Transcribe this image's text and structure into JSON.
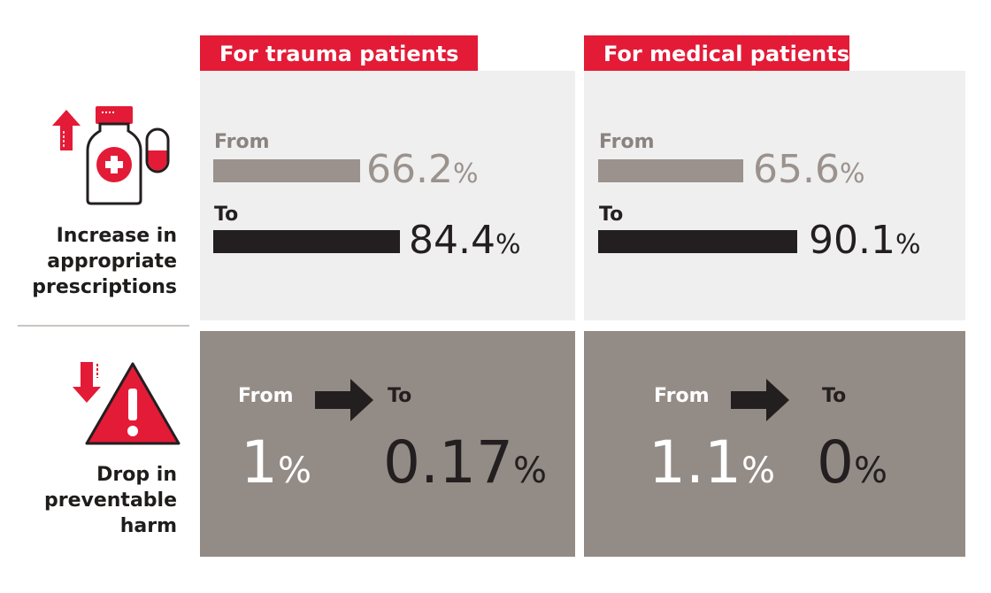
{
  "chart_data": [
    {
      "type": "bar",
      "title": "Increase in appropriate prescriptions — For trauma patients",
      "categories": [
        "From",
        "To"
      ],
      "values": [
        66.2,
        84.4
      ],
      "unit": "%"
    },
    {
      "type": "bar",
      "title": "Increase in appropriate prescriptions — For medical patients",
      "categories": [
        "From",
        "To"
      ],
      "values": [
        65.6,
        90.1
      ],
      "unit": "%"
    },
    {
      "type": "table",
      "title": "Drop in preventable harm",
      "columns": [
        "For trauma patients",
        "For medical patients"
      ],
      "from": [
        1,
        1.1
      ],
      "to": [
        0.17,
        0
      ],
      "unit": "%"
    }
  ],
  "headers": {
    "trauma": "For trauma patients",
    "medical": "For medical patients"
  },
  "rows": {
    "prescriptions": {
      "label_lines": [
        "Increase in",
        "appropriate",
        "prescriptions"
      ]
    },
    "harm": {
      "label_lines": [
        "Drop in",
        "preventable",
        "harm"
      ]
    }
  },
  "labels": {
    "from": "From",
    "to": "To",
    "pct": "%"
  },
  "prescriptions": {
    "trauma": {
      "from": "66.2",
      "to": "84.4",
      "from_value": 66.2,
      "to_value": 84.4
    },
    "medical": {
      "from": "65.6",
      "to": "90.1",
      "from_value": 65.6,
      "to_value": 90.1
    }
  },
  "harm": {
    "trauma": {
      "from": "1",
      "to": "0.17"
    },
    "medical": {
      "from": "1.1",
      "to": "0"
    }
  },
  "colors": {
    "accent_red": "#e31b37",
    "from_gray": "#9b928d",
    "dark": "#231f20",
    "panel_light": "#efefef",
    "panel_dark": "#938b86"
  },
  "icons": {
    "prescriptions": "medicine-bottle-pill-up-icon",
    "harm": "warning-triangle-down-icon",
    "arrow": "right-arrow-icon"
  }
}
